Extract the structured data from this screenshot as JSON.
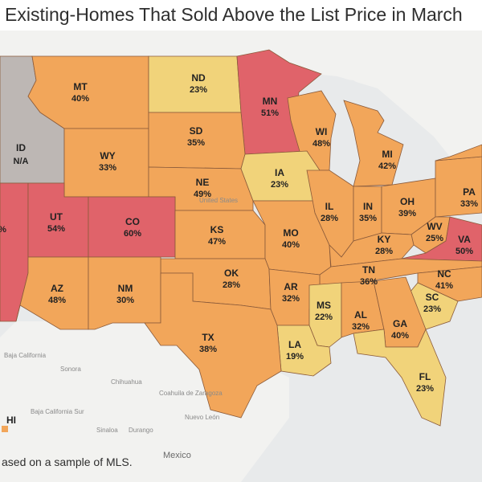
{
  "title": "Existing-Homes That Sold Above the List Price in March",
  "footnote": "ased on a sample of MLS.",
  "colors": {
    "high": "#e0636a",
    "mid": "#f2a65a",
    "low": "#f1d37a",
    "na": "#bdb7b4",
    "water": "#e8eaeb",
    "land": "#f2f2f0"
  },
  "states": {
    "MT": {
      "abbr": "MT",
      "value": "40%"
    },
    "ND": {
      "abbr": "ND",
      "value": "23%"
    },
    "MN": {
      "abbr": "MN",
      "value": "51%"
    },
    "ID": {
      "abbr": "ID",
      "value": "N/A"
    },
    "WY": {
      "abbr": "WY",
      "value": "33%"
    },
    "SD": {
      "abbr": "SD",
      "value": "35%"
    },
    "WI": {
      "abbr": "WI",
      "value": "48%"
    },
    "MI": {
      "abbr": "MI",
      "value": "42%"
    },
    "NE": {
      "abbr": "NE",
      "value": "49%"
    },
    "IA": {
      "abbr": "IA",
      "value": "23%"
    },
    "UT": {
      "abbr": "UT",
      "value": "54%"
    },
    "CO": {
      "abbr": "CO",
      "value": "60%"
    },
    "NV": {
      "value": "%"
    },
    "PA": {
      "abbr": "PA",
      "value": "33%"
    },
    "IL": {
      "abbr": "IL",
      "value": "28%"
    },
    "IN": {
      "abbr": "IN",
      "value": "35%"
    },
    "OH": {
      "abbr": "OH",
      "value": "39%"
    },
    "KS": {
      "abbr": "KS",
      "value": "47%"
    },
    "MO": {
      "abbr": "MO",
      "value": "40%"
    },
    "WV": {
      "abbr": "WV",
      "value": "25%"
    },
    "KY": {
      "abbr": "KY",
      "value": "28%"
    },
    "VA": {
      "abbr": "VA",
      "value": "50%"
    },
    "OK": {
      "abbr": "OK",
      "value": "28%"
    },
    "TN": {
      "abbr": "TN",
      "value": "36%"
    },
    "AZ": {
      "abbr": "AZ",
      "value": "48%"
    },
    "NM": {
      "abbr": "NM",
      "value": "30%"
    },
    "AR": {
      "abbr": "AR",
      "value": "32%"
    },
    "NC": {
      "abbr": "NC",
      "value": "41%"
    },
    "MS": {
      "abbr": "MS",
      "value": "22%"
    },
    "SC": {
      "abbr": "SC",
      "value": "23%"
    },
    "AL": {
      "abbr": "AL",
      "value": "32%"
    },
    "GA": {
      "abbr": "GA",
      "value": "40%"
    },
    "TX": {
      "abbr": "TX",
      "value": "38%"
    },
    "LA": {
      "abbr": "LA",
      "value": "19%"
    },
    "FL": {
      "abbr": "FL",
      "value": "23%"
    },
    "HI": {
      "abbr": "HI"
    }
  },
  "basemap_labels": {
    "united_states": "United States",
    "baja_california": "Baja California",
    "sonora": "Sonora",
    "chihuahua": "Chihuahua",
    "coahuila": "Coahuila de Zaragoza",
    "nuevo_leon": "Nuevo León",
    "sinaloa": "Sinaloa",
    "durango": "Durango",
    "baja_california_sur": "Baja California Sur",
    "mexico": "Mexico"
  }
}
